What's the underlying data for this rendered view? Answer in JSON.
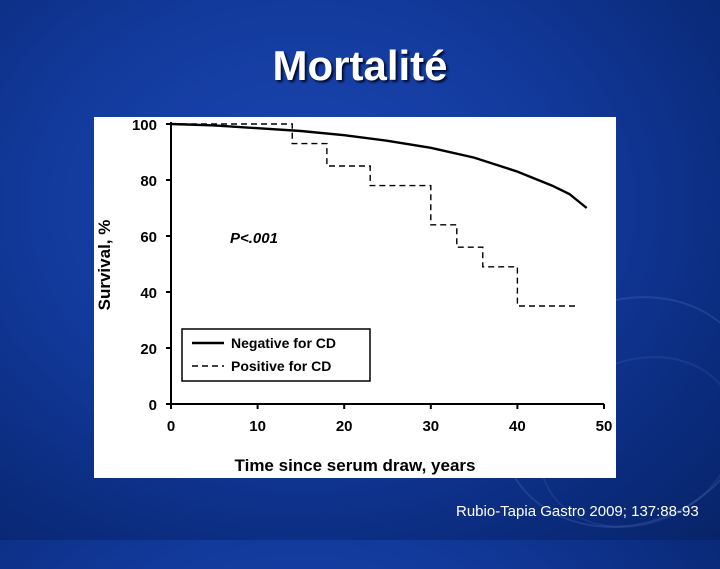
{
  "slide": {
    "title": "Mortalité",
    "citation": "Rubio-Tapia Gastro 2009; 137:88-93"
  },
  "chart_data": {
    "type": "line",
    "ylabel": "Survival, %",
    "xlabel": "Time since serum draw, years",
    "xlim": [
      0,
      50
    ],
    "ylim": [
      0,
      100
    ],
    "xticks": [
      0,
      10,
      20,
      30,
      40,
      50
    ],
    "yticks": [
      0,
      20,
      40,
      60,
      80,
      100
    ],
    "annotation": "P<.001",
    "legend_position": "bottom-left",
    "series": [
      {
        "name": "Negative for CD",
        "style": "solid",
        "x": [
          0,
          5,
          10,
          15,
          20,
          25,
          30,
          35,
          40,
          44,
          46,
          48
        ],
        "y": [
          100,
          99.5,
          98.5,
          97.5,
          96,
          94,
          91.5,
          88,
          83,
          78,
          75,
          70
        ]
      },
      {
        "name": "Positive for CD",
        "style": "dashed",
        "step": true,
        "x": [
          0,
          14,
          18,
          23,
          30,
          33,
          36,
          40,
          47
        ],
        "y": [
          100,
          93,
          85,
          78,
          64,
          56,
          49,
          35,
          35
        ]
      }
    ]
  }
}
